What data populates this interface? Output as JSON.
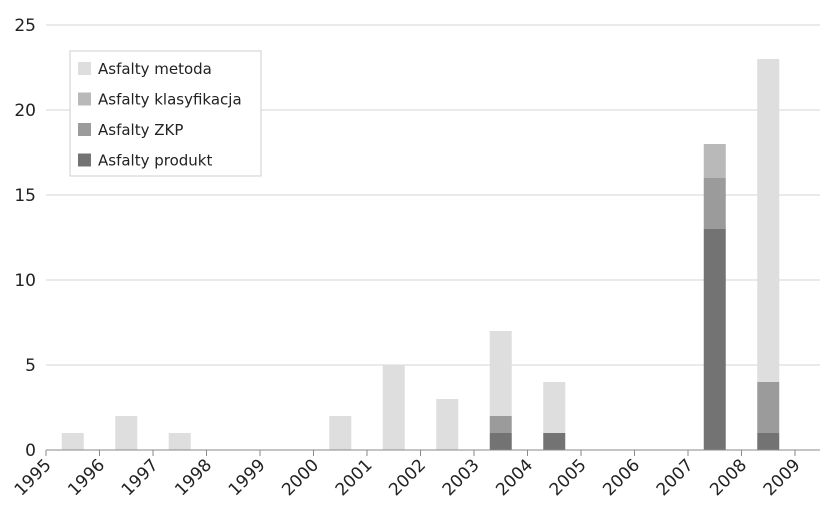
{
  "chart_data": {
    "type": "bar",
    "stacked": true,
    "categories": [
      "1995",
      "1996",
      "1997",
      "1998",
      "1999",
      "2000",
      "2001",
      "2002",
      "2003",
      "2004",
      "2005",
      "2006",
      "2007",
      "2008",
      "2009"
    ],
    "series": [
      {
        "name": "Asfalty produkt",
        "color": "#737373",
        "values": [
          0,
          0,
          0,
          0,
          0,
          0,
          0,
          0,
          1,
          1,
          0,
          0,
          13,
          1,
          0
        ]
      },
      {
        "name": "Asfalty ZKP",
        "color": "#9b9b9b",
        "values": [
          0,
          0,
          0,
          0,
          0,
          0,
          0,
          0,
          1,
          0,
          0,
          0,
          3,
          3,
          0
        ]
      },
      {
        "name": "Asfalty klasyfikacja",
        "color": "#b9b9b9",
        "values": [
          0,
          0,
          0,
          0,
          0,
          0,
          0,
          0,
          0,
          0,
          0,
          0,
          2,
          0,
          0
        ]
      },
      {
        "name": "Asfalty metoda",
        "color": "#dedede",
        "values": [
          1,
          2,
          1,
          0,
          0,
          2,
          5,
          3,
          5,
          3,
          0,
          0,
          0,
          19,
          0
        ]
      }
    ],
    "legend_order": [
      "Asfalty metoda",
      "Asfalty klasyfikacja",
      "Asfalty ZKP",
      "Asfalty produkt"
    ],
    "yticks": [
      0,
      5,
      10,
      15,
      20,
      25
    ],
    "ylim": [
      0,
      25
    ],
    "grid": true,
    "legend_position": "top-left",
    "title": "",
    "xlabel": "",
    "ylabel": ""
  }
}
